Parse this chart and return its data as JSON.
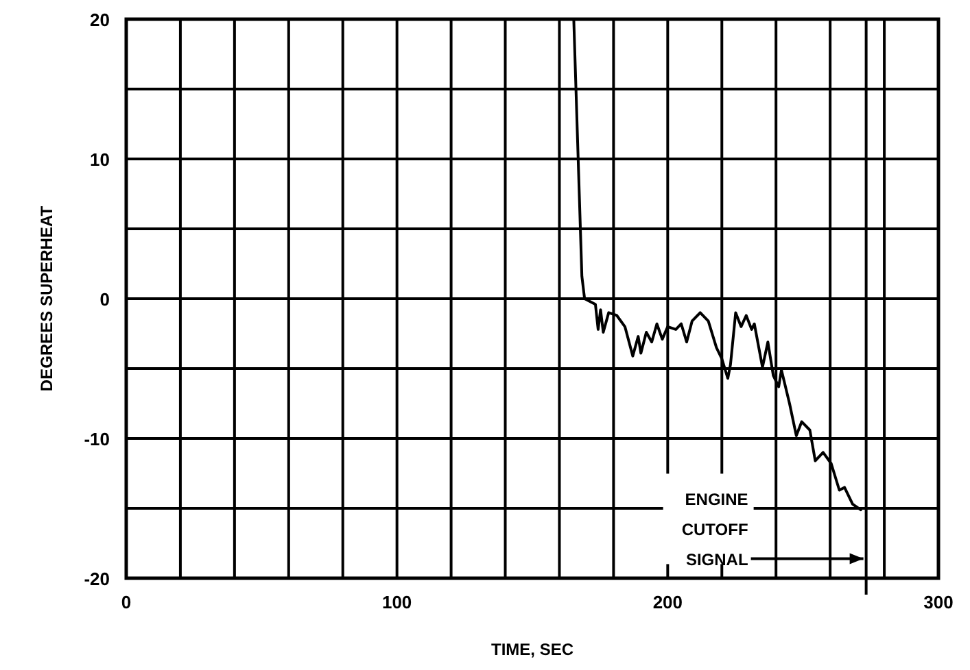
{
  "chart_data": {
    "type": "line",
    "xlabel": "TIME, SEC",
    "ylabel": "DEGREES SUPERHEAT",
    "x": [
      165.3,
      168.3,
      169.3,
      173.3,
      174.3,
      175.2,
      176.2,
      178.2,
      181.2,
      184.2,
      187.1,
      189.1,
      190.1,
      192.1,
      194.1,
      196,
      198,
      200,
      203,
      205,
      207,
      209,
      212,
      215,
      218,
      220,
      222.2,
      223.2,
      225.1,
      227.1,
      229,
      231,
      232,
      235,
      237,
      239,
      241,
      242,
      245,
      247.5,
      249.5,
      252.5,
      254.5,
      257.4,
      260.4,
      263.4,
      265.3,
      268.3,
      271.3
    ],
    "series": [
      {
        "color": "#000000",
        "values": [
          20,
          1.6,
          0,
          -0.4,
          -2.2,
          -0.8,
          -2.4,
          -1,
          -1.2,
          -2,
          -4.1,
          -2.7,
          -3.9,
          -2.4,
          -3.1,
          -1.8,
          -2.9,
          -2,
          -2.2,
          -1.8,
          -3.1,
          -1.6,
          -1,
          -1.6,
          -3.5,
          -4.3,
          -5.7,
          -4.7,
          -1,
          -2,
          -1.2,
          -2.2,
          -1.8,
          -4.9,
          -3.1,
          -5.5,
          -6.3,
          -5.1,
          -7.5,
          -9.8,
          -8.8,
          -9.4,
          -11.6,
          -11,
          -11.8,
          -13.7,
          -13.5,
          -14.7,
          -15.1
        ]
      }
    ],
    "xlim": [
      0,
      300
    ],
    "ylim": [
      -20,
      20
    ],
    "xticks": [
      0,
      {
        "value": 20,
        "label": null
      },
      {
        "value": 40,
        "label": null
      },
      {
        "value": 60,
        "label": null
      },
      {
        "value": 80,
        "label": null
      },
      100,
      {
        "value": 120,
        "label": null
      },
      {
        "value": 140,
        "label": null
      },
      {
        "value": 160,
        "label": null
      },
      {
        "value": 180,
        "label": null
      },
      200,
      {
        "value": 220,
        "label": null
      },
      {
        "value": 240,
        "label": null
      },
      {
        "value": 260,
        "label": null
      },
      {
        "value": 280,
        "label": null
      },
      300
    ],
    "yticks": [
      -20,
      {
        "value": -15,
        "label": null
      },
      -10,
      {
        "value": -5,
        "label": null
      },
      0,
      {
        "value": 5,
        "label": null
      },
      10,
      {
        "value": 15,
        "label": null
      },
      20
    ],
    "grid": true,
    "marker": "none",
    "line_style": "solid",
    "ref_lines": [
      {
        "axis": "x",
        "value": 273.3,
        "label": null,
        "color": "#000000"
      }
    ],
    "annotations": [
      {
        "text": "ENGINE\nCUTOFF\nSIGNAL",
        "x": 273.3,
        "y": -18.6
      }
    ]
  }
}
